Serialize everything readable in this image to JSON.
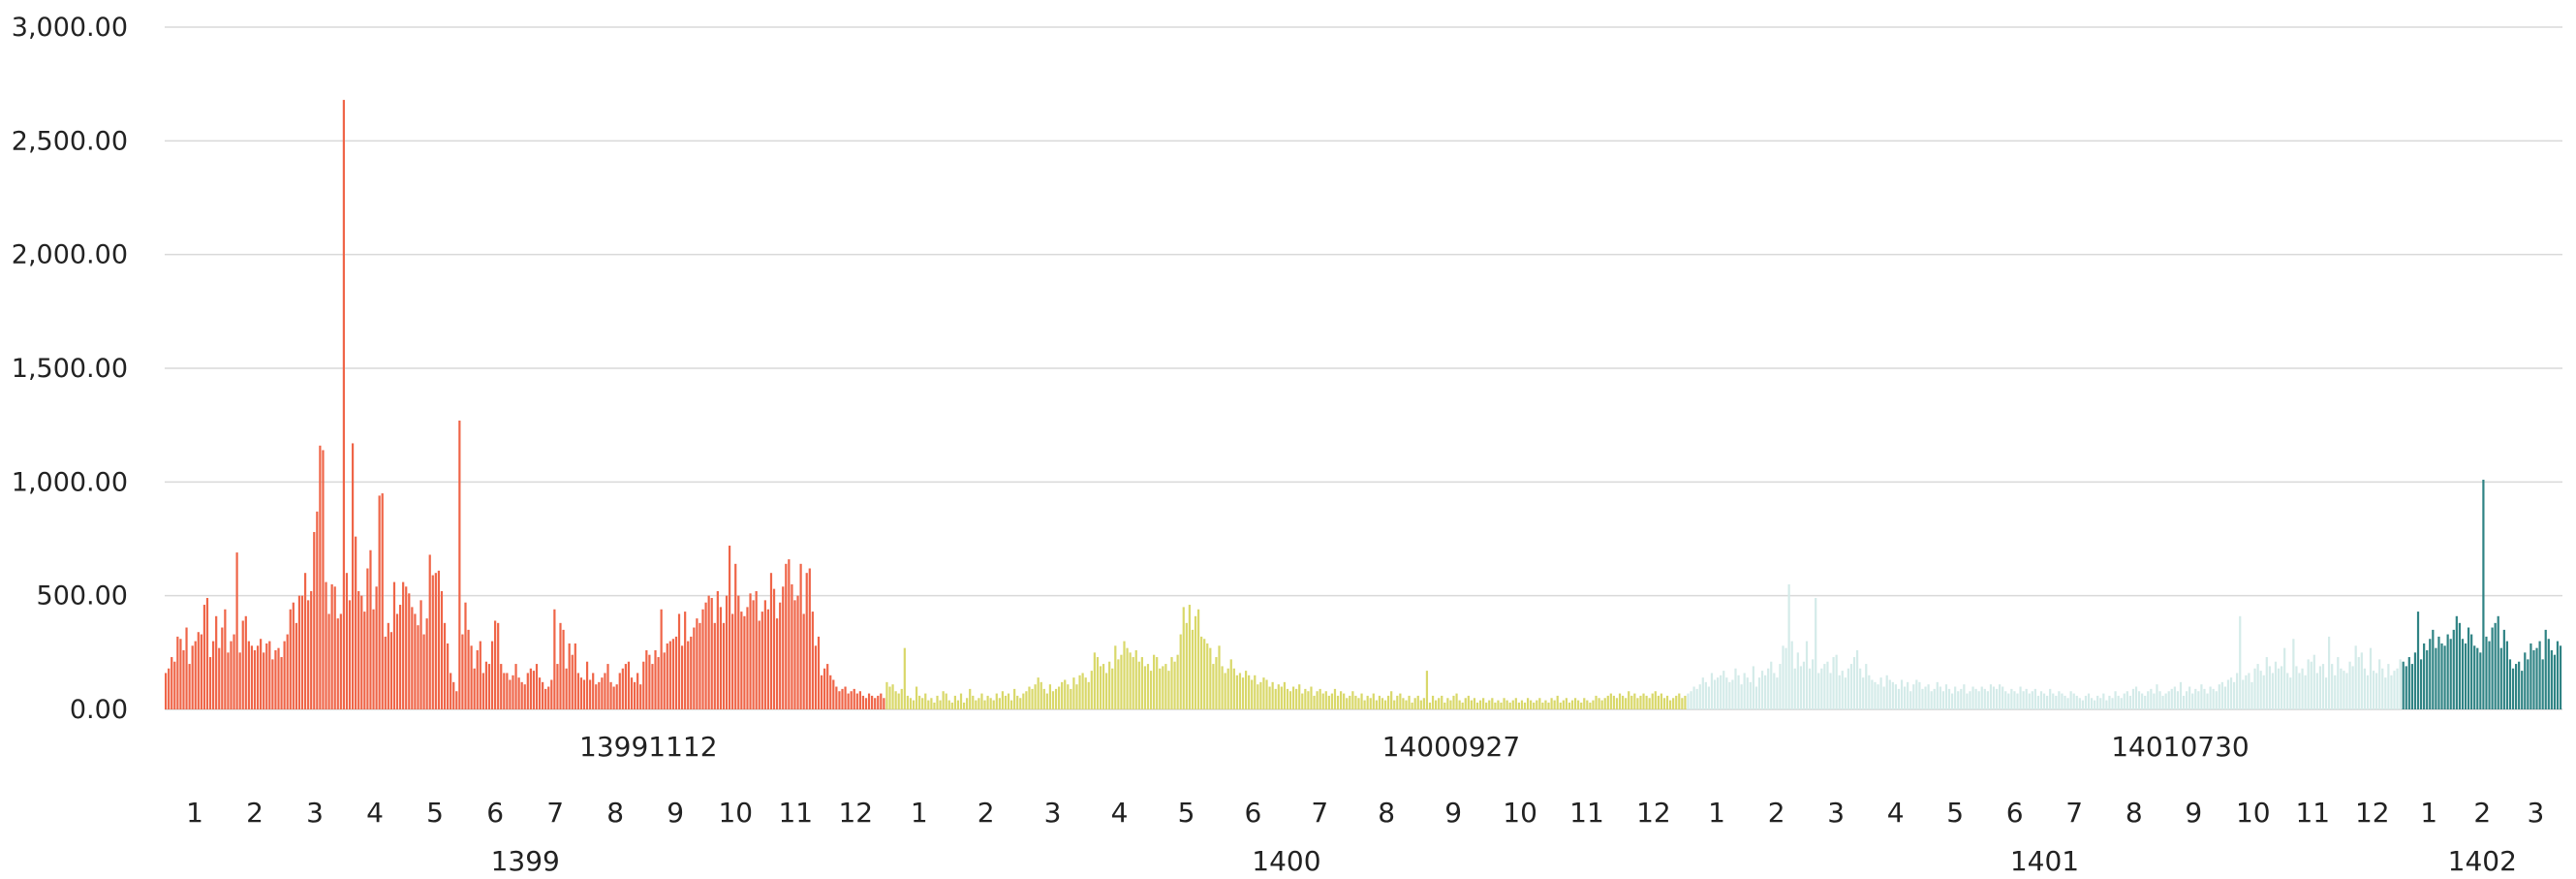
{
  "chart_data": {
    "type": "bar",
    "title": "",
    "xlabel": "",
    "ylabel": "",
    "ylim": [
      0,
      3000
    ],
    "grid": true,
    "legend": "none",
    "y_ticks": [
      "0.00",
      "500.00",
      "1,000.00",
      "1,500.00",
      "2,000.00",
      "2,500.00",
      "3,000.00"
    ],
    "date_labels": [
      "13991112",
      "14000927",
      "14010730"
    ],
    "years": [
      {
        "label": "1399",
        "color": "#ef6548",
        "months": [
          "1",
          "2",
          "3",
          "4",
          "5",
          "6",
          "7",
          "8",
          "9",
          "10",
          "11",
          "12"
        ],
        "values": [
          160,
          180,
          230,
          210,
          320,
          310,
          260,
          360,
          200,
          280,
          300,
          340,
          330,
          460,
          490,
          230,
          300,
          410,
          270,
          360,
          440,
          250,
          300,
          330,
          690,
          250,
          390,
          410,
          300,
          280,
          260,
          280,
          310,
          250,
          290,
          300,
          220,
          260,
          270,
          230,
          300,
          330,
          440,
          470,
          380,
          500,
          500,
          600,
          480,
          520,
          780,
          870,
          1160,
          1140,
          560,
          420,
          550,
          540,
          400,
          420,
          2680,
          600,
          480,
          1170,
          760,
          520,
          500,
          430,
          620,
          700,
          440,
          540,
          940,
          950,
          320,
          380,
          340,
          560,
          420,
          460,
          560,
          540,
          510,
          450,
          420,
          370,
          480,
          330,
          400,
          680,
          590,
          600,
          610,
          520,
          380,
          290,
          160,
          120,
          80,
          1270,
          330,
          470,
          350,
          280,
          180,
          260,
          300,
          160,
          210,
          200,
          300,
          390,
          380,
          200,
          160,
          160,
          130,
          150,
          200,
          140,
          120,
          110,
          160,
          180,
          170,
          200,
          140,
          120,
          90,
          100,
          130,
          440,
          200,
          380,
          350,
          180,
          290,
          240,
          290,
          160,
          140,
          130,
          210,
          130,
          160,
          110,
          120,
          140,
          160,
          200,
          120,
          100,
          110,
          160,
          180,
          200,
          210,
          140,
          120,
          160,
          110,
          210,
          260,
          240,
          200,
          260,
          230,
          440,
          250,
          290,
          300,
          310,
          320,
          420,
          280,
          430,
          300,
          320,
          360,
          400,
          380,
          440,
          470,
          500,
          490,
          380,
          520,
          450,
          380,
          500,
          720,
          420,
          640,
          500,
          430,
          410,
          450,
          510,
          480,
          520,
          390,
          430,
          480,
          440,
          600,
          530,
          400,
          470,
          540,
          640,
          660,
          550,
          480,
          500,
          640,
          420,
          600,
          620,
          430,
          280,
          320,
          150,
          180,
          200,
          150,
          130,
          100,
          80,
          90,
          100,
          70,
          80,
          90,
          70,
          80,
          60,
          50,
          70,
          60,
          50,
          60,
          70,
          50
        ]
      },
      {
        "label": "1400",
        "color": "#d9d86a",
        "months": [
          "1",
          "2",
          "3",
          "4",
          "5",
          "6",
          "7",
          "8",
          "9",
          "10",
          "11",
          "12"
        ],
        "values": [
          120,
          100,
          110,
          80,
          70,
          90,
          270,
          60,
          50,
          40,
          100,
          60,
          50,
          70,
          40,
          50,
          30,
          60,
          40,
          80,
          70,
          40,
          30,
          60,
          40,
          70,
          30,
          50,
          90,
          60,
          40,
          50,
          70,
          40,
          60,
          50,
          40,
          70,
          50,
          80,
          60,
          70,
          40,
          90,
          60,
          50,
          70,
          80,
          100,
          90,
          110,
          140,
          120,
          90,
          70,
          110,
          80,
          90,
          100,
          120,
          130,
          110,
          90,
          140,
          110,
          150,
          160,
          140,
          120,
          170,
          250,
          230,
          190,
          200,
          160,
          210,
          180,
          280,
          220,
          240,
          300,
          270,
          250,
          230,
          260,
          210,
          230,
          190,
          200,
          170,
          240,
          230,
          180,
          190,
          200,
          170,
          230,
          210,
          240,
          330,
          450,
          380,
          460,
          350,
          410,
          440,
          320,
          310,
          290,
          270,
          200,
          230,
          280,
          190,
          160,
          180,
          220,
          180,
          150,
          160,
          140,
          170,
          150,
          130,
          150,
          110,
          120,
          140,
          130,
          100,
          120,
          90,
          110,
          100,
          120,
          90,
          80,
          100,
          90,
          110,
          70,
          90,
          80,
          100,
          60,
          80,
          90,
          70,
          80,
          60,
          70,
          90,
          60,
          80,
          70,
          50,
          60,
          80,
          60,
          50,
          70,
          40,
          60,
          50,
          70,
          40,
          60,
          50,
          40,
          60,
          80,
          40,
          60,
          70,
          50,
          40,
          60,
          30,
          50,
          60,
          40,
          50,
          170,
          30,
          60,
          40,
          50,
          60,
          30,
          50,
          40,
          60,
          70,
          40,
          30,
          50,
          60,
          40,
          50,
          30,
          40,
          50,
          30,
          40,
          50,
          30,
          40,
          30,
          50,
          40,
          30,
          40,
          50,
          30,
          40,
          30,
          50,
          40,
          30,
          40,
          50,
          30,
          40,
          30,
          50,
          40,
          60,
          30,
          40,
          50,
          30,
          40,
          50,
          40,
          30,
          50,
          40,
          30,
          40,
          60,
          50,
          40,
          50,
          60,
          70,
          60,
          50,
          70,
          60,
          50,
          80,
          60,
          70,
          50,
          60,
          70,
          60,
          50,
          70,
          80,
          60,
          70,
          50,
          60,
          40,
          50,
          60,
          70,
          50,
          60
        ]
      },
      {
        "label": "1401",
        "color": "#d4ebe9",
        "months": [
          "1",
          "2",
          "3",
          "4",
          "5",
          "6",
          "7",
          "8",
          "9",
          "10",
          "11",
          "12"
        ],
        "values": [
          70,
          80,
          100,
          90,
          110,
          140,
          120,
          100,
          160,
          130,
          140,
          150,
          170,
          140,
          120,
          130,
          180,
          150,
          110,
          160,
          140,
          120,
          190,
          100,
          140,
          170,
          150,
          180,
          210,
          160,
          140,
          200,
          280,
          270,
          550,
          300,
          180,
          250,
          190,
          210,
          300,
          180,
          220,
          490,
          160,
          180,
          200,
          210,
          160,
          230,
          240,
          150,
          170,
          140,
          180,
          200,
          230,
          260,
          180,
          140,
          200,
          150,
          130,
          120,
          110,
          140,
          100,
          150,
          130,
          120,
          110,
          90,
          130,
          100,
          120,
          80,
          110,
          130,
          120,
          90,
          100,
          110,
          80,
          90,
          120,
          100,
          80,
          110,
          90,
          70,
          100,
          80,
          90,
          110,
          70,
          80,
          100,
          90,
          80,
          100,
          90,
          80,
          110,
          100,
          90,
          110,
          100,
          80,
          70,
          90,
          80,
          70,
          100,
          80,
          90,
          70,
          80,
          90,
          60,
          80,
          70,
          60,
          90,
          70,
          60,
          80,
          70,
          60,
          50,
          80,
          70,
          60,
          50,
          40,
          60,
          70,
          50,
          40,
          60,
          50,
          70,
          40,
          60,
          50,
          80,
          60,
          50,
          70,
          80,
          60,
          90,
          100,
          80,
          70,
          60,
          80,
          90,
          70,
          110,
          80,
          60,
          70,
          80,
          90,
          100,
          80,
          120,
          60,
          80,
          100,
          70,
          90,
          80,
          110,
          90,
          70,
          100,
          90,
          80,
          110,
          120,
          100,
          130,
          140,
          120,
          160,
          410,
          130,
          150,
          160,
          120,
          180,
          200,
          170,
          150,
          230,
          190,
          160,
          210,
          180,
          190,
          270,
          160,
          140,
          310,
          190,
          160,
          180,
          150,
          220,
          210,
          240,
          160,
          190,
          200,
          140,
          320,
          200,
          150,
          230,
          180,
          170,
          160,
          210,
          190,
          280,
          230,
          250,
          180,
          150,
          270,
          170,
          160,
          220,
          180,
          140,
          200,
          150,
          170,
          180,
          220
        ]
      },
      {
        "label": "1402",
        "color": "#2f8384",
        "months": [
          "1",
          "2",
          "3"
        ],
        "values": [
          210,
          190,
          230,
          200,
          250,
          430,
          220,
          290,
          260,
          310,
          350,
          270,
          320,
          290,
          280,
          330,
          310,
          350,
          410,
          380,
          310,
          290,
          360,
          330,
          280,
          270,
          250,
          1010,
          320,
          300,
          360,
          380,
          410,
          270,
          350,
          300,
          220,
          180,
          200,
          210,
          170,
          250,
          220,
          290,
          260,
          270,
          300,
          220,
          350,
          310,
          260,
          240,
          300,
          280
        ]
      }
    ]
  }
}
